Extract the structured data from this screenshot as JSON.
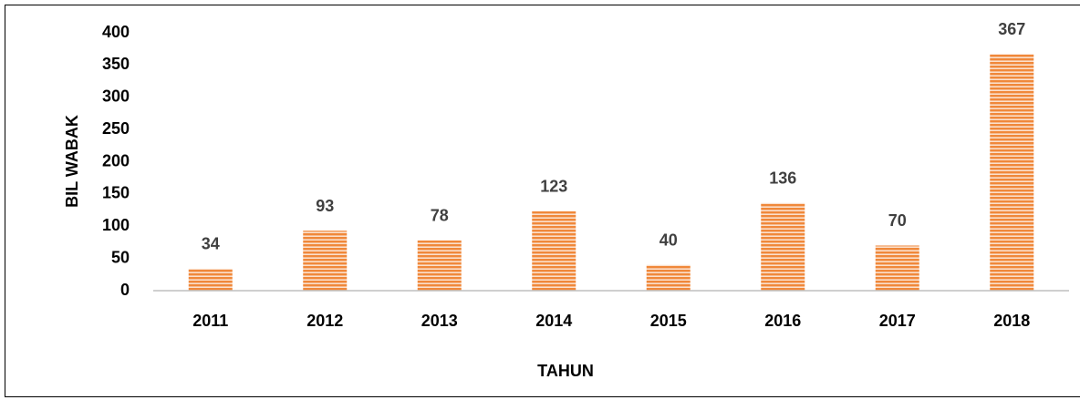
{
  "chart_data": {
    "type": "bar",
    "x_label": "TAHUN",
    "y_label": "BIL WABAK",
    "categories": [
      "2011",
      "2012",
      "2013",
      "2014",
      "2015",
      "2016",
      "2017",
      "2018"
    ],
    "values": [
      34,
      93,
      78,
      123,
      40,
      136,
      70,
      367
    ],
    "color": "#f0883a",
    "ylim": [
      0,
      400
    ],
    "yticks": [
      0,
      50,
      100,
      150,
      200,
      250,
      300,
      350,
      400
    ],
    "grid": false,
    "data_labels": true
  }
}
